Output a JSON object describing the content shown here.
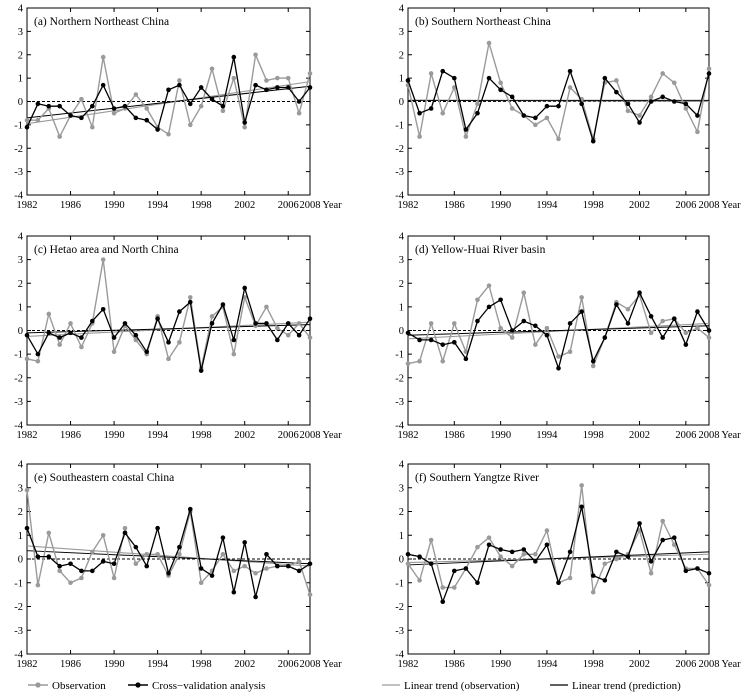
{
  "chart_data": [
    {
      "type": "line",
      "title": "(a) Northern Northeast China",
      "xlabel": "Year",
      "ylabel": "",
      "ylim": [
        -4,
        4
      ],
      "xlim": [
        1982,
        2008
      ],
      "x_ticks": [
        1982,
        1986,
        1990,
        1994,
        1998,
        2002,
        2006,
        2008
      ],
      "y_ticks": [
        -4,
        -3,
        -2,
        -1,
        0,
        1,
        2,
        3,
        4
      ],
      "x": [
        1982,
        1983,
        1984,
        1985,
        1986,
        1987,
        1988,
        1989,
        1990,
        1991,
        1992,
        1993,
        1994,
        1995,
        1996,
        1997,
        1998,
        1999,
        2000,
        2001,
        2002,
        2003,
        2004,
        2005,
        2006,
        2007,
        2008
      ],
      "series": [
        {
          "name": "Observation",
          "values": [
            -0.8,
            -0.8,
            -0.3,
            -1.5,
            -0.6,
            0.1,
            -1.1,
            1.9,
            -0.5,
            -0.3,
            0.3,
            -0.3,
            -1.1,
            -1.4,
            0.9,
            -1.0,
            -0.2,
            1.4,
            -0.4,
            1.0,
            -1.1,
            2.0,
            0.9,
            1.0,
            1.0,
            -0.5,
            1.2
          ]
        },
        {
          "name": "Cross-validation analysis",
          "values": [
            -1.1,
            -0.1,
            -0.2,
            -0.2,
            -0.6,
            -0.7,
            -0.2,
            0.7,
            -0.3,
            -0.2,
            -0.7,
            -0.8,
            -1.2,
            0.5,
            0.7,
            -0.1,
            0.6,
            0.1,
            -0.2,
            1.9,
            -0.9,
            0.7,
            0.5,
            0.6,
            0.6,
            0.0,
            0.6
          ]
        },
        {
          "name": "Linear trend (observation)",
          "values_start_end": [
            -0.95,
            0.85
          ]
        },
        {
          "name": "Linear trend (prediction)",
          "values_start_end": [
            -0.7,
            0.65
          ]
        }
      ]
    },
    {
      "type": "line",
      "title": "(b) Southern Northeast China",
      "xlabel": "Year",
      "ylabel": "",
      "ylim": [
        -4,
        4
      ],
      "xlim": [
        1982,
        2008
      ],
      "x_ticks": [
        1982,
        1986,
        1990,
        1994,
        1998,
        2002,
        2006,
        2008
      ],
      "y_ticks": [
        -4,
        -3,
        -2,
        -1,
        0,
        1,
        2,
        3,
        4
      ],
      "x": [
        1982,
        1983,
        1984,
        1985,
        1986,
        1987,
        1988,
        1989,
        1990,
        1991,
        1992,
        1993,
        1994,
        1995,
        1996,
        1997,
        1998,
        1999,
        2000,
        2001,
        2002,
        2003,
        2004,
        2005,
        2006,
        2007,
        2008
      ],
      "series": [
        {
          "name": "Observation",
          "values": [
            0.7,
            -1.5,
            1.2,
            -0.5,
            0.6,
            -1.5,
            -0.1,
            2.5,
            0.8,
            -0.3,
            -0.6,
            -1.0,
            -0.7,
            -1.6,
            0.6,
            0.1,
            -1.6,
            0.8,
            0.9,
            -0.4,
            -0.6,
            0.2,
            1.2,
            0.8,
            -0.3,
            -1.3,
            1.4
          ]
        },
        {
          "name": "Cross-validation analysis",
          "values": [
            0.9,
            -0.5,
            -0.3,
            1.3,
            1.0,
            -1.2,
            -0.5,
            1.0,
            0.5,
            0.2,
            -0.6,
            -0.7,
            -0.2,
            -0.2,
            1.3,
            -0.1,
            -1.7,
            1.0,
            0.4,
            -0.1,
            -0.9,
            0.0,
            0.2,
            0.0,
            -0.1,
            -0.6,
            1.2
          ]
        },
        {
          "name": "Linear trend (observation)",
          "values_start_end": [
            0.05,
            0.0
          ]
        },
        {
          "name": "Linear trend (prediction)",
          "values_start_end": [
            0.05,
            0.05
          ]
        }
      ]
    },
    {
      "type": "line",
      "title": "(c) Hetao area and North China",
      "xlabel": "Year",
      "ylabel": "",
      "ylim": [
        -4,
        4
      ],
      "xlim": [
        1982,
        2008
      ],
      "x_ticks": [
        1982,
        1986,
        1990,
        1994,
        1998,
        2002,
        2006,
        2008
      ],
      "y_ticks": [
        -4,
        -3,
        -2,
        -1,
        0,
        1,
        2,
        3,
        4
      ],
      "x": [
        1982,
        1983,
        1984,
        1985,
        1986,
        1987,
        1988,
        1989,
        1990,
        1991,
        1992,
        1993,
        1994,
        1995,
        1996,
        1997,
        1998,
        1999,
        2000,
        2001,
        2002,
        2003,
        2004,
        2005,
        2006,
        2007,
        2008
      ],
      "series": [
        {
          "name": "Observation",
          "values": [
            -1.2,
            -1.3,
            0.7,
            -0.6,
            0.3,
            -0.7,
            0.3,
            3.0,
            -0.9,
            0.2,
            -0.4,
            -1.0,
            0.6,
            -1.2,
            -0.5,
            1.4,
            -1.6,
            0.6,
            1.0,
            -1.0,
            1.4,
            0.2,
            1.0,
            0.1,
            -0.2,
            0.3,
            -0.3
          ]
        },
        {
          "name": "Cross-validation analysis",
          "values": [
            -0.2,
            -1.0,
            -0.1,
            -0.3,
            -0.1,
            -0.3,
            0.4,
            0.9,
            -0.3,
            0.3,
            -0.2,
            -0.9,
            0.5,
            -0.5,
            0.8,
            1.2,
            -1.7,
            0.3,
            1.1,
            -0.4,
            1.8,
            0.3,
            0.3,
            -0.4,
            0.3,
            -0.2,
            0.5
          ]
        },
        {
          "name": "Linear trend (observation)",
          "values_start_end": [
            -0.25,
            0.35
          ]
        },
        {
          "name": "Linear trend (prediction)",
          "values_start_end": [
            -0.1,
            0.25
          ]
        }
      ]
    },
    {
      "type": "line",
      "title": "(d) Yellow-Huai River basin",
      "xlabel": "Year",
      "ylabel": "",
      "ylim": [
        -4,
        4
      ],
      "xlim": [
        1982,
        2008
      ],
      "x_ticks": [
        1982,
        1986,
        1990,
        1994,
        1998,
        2002,
        2006,
        2008
      ],
      "y_ticks": [
        -4,
        -3,
        -2,
        -1,
        0,
        1,
        2,
        3,
        4
      ],
      "x": [
        1982,
        1983,
        1984,
        1985,
        1986,
        1987,
        1988,
        1989,
        1990,
        1991,
        1992,
        1993,
        1994,
        1995,
        1996,
        1997,
        1998,
        1999,
        2000,
        2001,
        2002,
        2003,
        2004,
        2005,
        2006,
        2007,
        2008
      ],
      "series": [
        {
          "name": "Observation",
          "values": [
            -1.4,
            -1.3,
            0.3,
            -1.3,
            0.3,
            -0.9,
            1.3,
            1.9,
            0.1,
            -0.3,
            1.6,
            -0.6,
            0.1,
            -1.1,
            -0.9,
            1.4,
            -1.5,
            -0.3,
            1.2,
            0.9,
            1.5,
            -0.1,
            0.4,
            0.5,
            -0.1,
            0.1,
            -0.3
          ]
        },
        {
          "name": "Cross-validation analysis",
          "values": [
            -0.1,
            -0.4,
            -0.4,
            -0.6,
            -0.5,
            -1.2,
            0.4,
            1.0,
            1.3,
            0.0,
            0.4,
            0.2,
            -0.2,
            -1.6,
            0.3,
            0.8,
            -1.3,
            -0.3,
            1.1,
            0.3,
            1.6,
            0.6,
            -0.3,
            0.5,
            -0.6,
            0.8,
            0.0
          ]
        },
        {
          "name": "Linear trend (observation)",
          "values_start_end": [
            -0.35,
            0.3
          ]
        },
        {
          "name": "Linear trend (prediction)",
          "values_start_end": [
            -0.2,
            0.2
          ]
        }
      ]
    },
    {
      "type": "line",
      "title": "(e) Southeastern coastal China",
      "xlabel": "Year",
      "ylabel": "",
      "ylim": [
        -4,
        4
      ],
      "xlim": [
        1982,
        2008
      ],
      "x_ticks": [
        1982,
        1986,
        1990,
        1994,
        1998,
        2002,
        2006,
        2008
      ],
      "y_ticks": [
        -4,
        -3,
        -2,
        -1,
        0,
        1,
        2,
        3,
        4
      ],
      "x": [
        1982,
        1983,
        1984,
        1985,
        1986,
        1987,
        1988,
        1989,
        1990,
        1991,
        1992,
        1993,
        1994,
        1995,
        1996,
        1997,
        1998,
        1999,
        2000,
        2001,
        2002,
        2003,
        2004,
        2005,
        2006,
        2007,
        2008
      ],
      "series": [
        {
          "name": "Observation",
          "values": [
            2.9,
            -1.1,
            1.1,
            -0.5,
            -1.0,
            -0.8,
            0.3,
            1.0,
            -0.8,
            1.3,
            -0.2,
            0.2,
            0.2,
            -0.7,
            0.2,
            2.0,
            -1.0,
            -0.5,
            0.2,
            -0.5,
            -0.3,
            -0.6,
            -0.4,
            -0.3,
            -0.3,
            -0.1,
            -1.5
          ]
        },
        {
          "name": "Cross-validation analysis",
          "values": [
            1.3,
            0.1,
            0.1,
            -0.3,
            -0.2,
            -0.5,
            -0.5,
            -0.1,
            -0.2,
            1.1,
            0.5,
            -0.3,
            1.3,
            -0.6,
            0.5,
            2.1,
            -0.4,
            -0.7,
            0.9,
            -1.4,
            0.7,
            -1.6,
            0.2,
            -0.3,
            -0.3,
            -0.5,
            -0.2
          ]
        },
        {
          "name": "Linear trend (observation)",
          "values_start_end": [
            0.55,
            -0.3
          ]
        },
        {
          "name": "Linear trend (prediction)",
          "values_start_end": [
            0.35,
            -0.2
          ]
        }
      ]
    },
    {
      "type": "line",
      "title": "(f) Southern Yangtze River",
      "xlabel": "Year",
      "ylabel": "",
      "ylim": [
        -4,
        4
      ],
      "xlim": [
        1982,
        2008
      ],
      "x_ticks": [
        1982,
        1986,
        1990,
        1994,
        1998,
        2002,
        2006,
        2008
      ],
      "y_ticks": [
        -4,
        -3,
        -2,
        -1,
        0,
        1,
        2,
        3,
        4
      ],
      "x": [
        1982,
        1983,
        1984,
        1985,
        1986,
        1987,
        1988,
        1989,
        1990,
        1991,
        1992,
        1993,
        1994,
        1995,
        1996,
        1997,
        1998,
        1999,
        2000,
        2001,
        2002,
        2003,
        2004,
        2005,
        2006,
        2007,
        2008
      ],
      "series": [
        {
          "name": "Observation",
          "values": [
            -0.2,
            -0.9,
            0.8,
            -1.2,
            -1.2,
            -0.4,
            0.5,
            0.9,
            0.1,
            -0.3,
            0.2,
            0.2,
            1.2,
            -1.0,
            -0.8,
            3.1,
            -1.4,
            -0.2,
            0.0,
            0.2,
            1.2,
            -0.6,
            1.6,
            0.6,
            -0.4,
            -0.4,
            -1.1
          ]
        },
        {
          "name": "Cross-validation analysis",
          "values": [
            0.2,
            0.1,
            -0.2,
            -1.8,
            -0.5,
            -0.4,
            -1.0,
            0.6,
            0.4,
            0.3,
            0.4,
            -0.1,
            0.6,
            -1.0,
            0.3,
            2.2,
            -0.7,
            -0.9,
            0.3,
            0.1,
            1.5,
            -0.1,
            0.8,
            0.9,
            -0.5,
            -0.4,
            -0.6
          ]
        },
        {
          "name": "Linear trend (observation)",
          "values_start_end": [
            -0.15,
            0.2
          ]
        },
        {
          "name": "Linear trend (prediction)",
          "values_start_end": [
            -0.25,
            0.3
          ]
        }
      ]
    }
  ],
  "legend": {
    "observation": "Observation",
    "cv": "Cross−validation analysis",
    "trend_obs": "Linear trend (observation)",
    "trend_pred": "Linear trend (prediction)"
  },
  "colors": {
    "observation": "#9a9a9a",
    "cv": "#000000",
    "trend_obs": "#9a9a9a",
    "trend_pred": "#000000",
    "axis": "#000000"
  }
}
